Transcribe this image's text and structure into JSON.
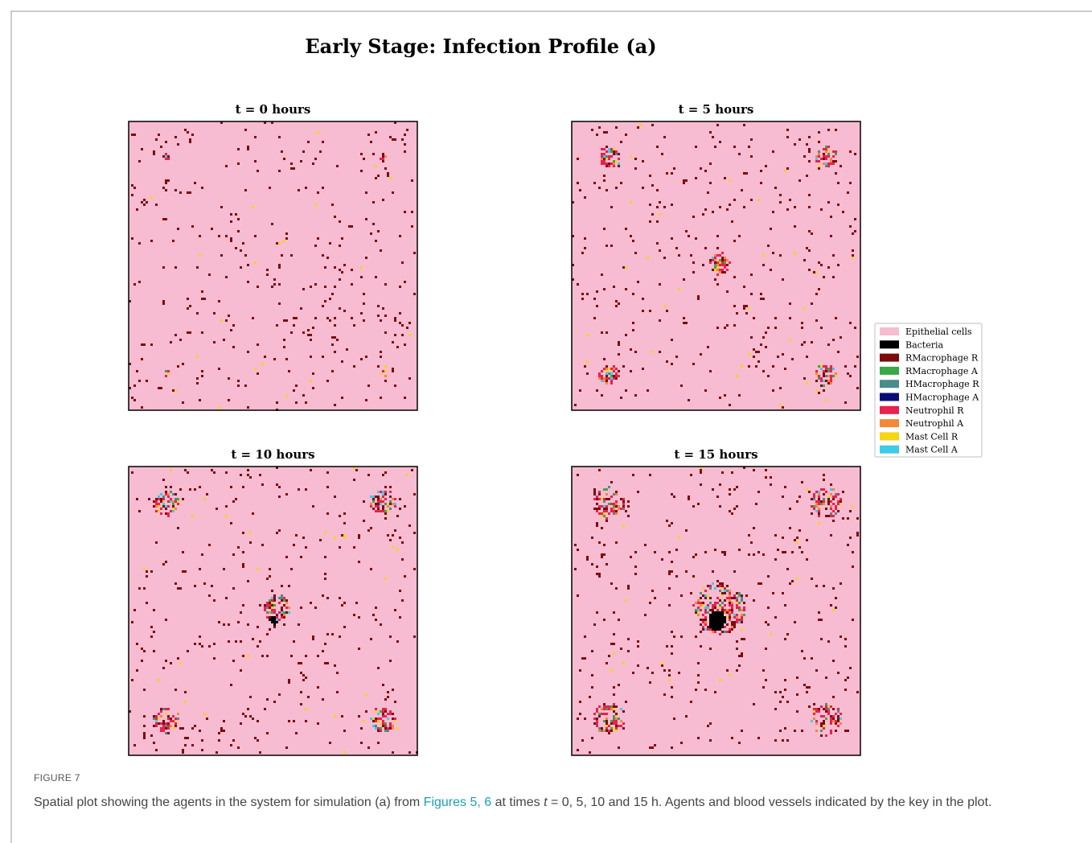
{
  "figure": {
    "title": "Early Stage: Infection Profile (a)",
    "panels": [
      {
        "title": "t = 0 hours"
      },
      {
        "title": "t = 5 hours"
      },
      {
        "title": "t = 10 hours"
      },
      {
        "title": "t = 15 hours"
      }
    ],
    "legend": [
      {
        "name": "Epithelial cells",
        "color": "#f7bcd1"
      },
      {
        "name": "Bacteria",
        "color": "#000000"
      },
      {
        "name": "RMacrophage R",
        "color": "#7d0b0b"
      },
      {
        "name": "RMacrophage A",
        "color": "#3aa845"
      },
      {
        "name": "HMacrophage R",
        "color": "#4b8b8c"
      },
      {
        "name": "HMacrophage A",
        "color": "#0b0b78"
      },
      {
        "name": "Neutrophil R",
        "color": "#e8214f"
      },
      {
        "name": "Neutrophil A",
        "color": "#f5873a"
      },
      {
        "name": "Mast Cell R",
        "color": "#f5d514"
      },
      {
        "name": "Mast Cell A",
        "color": "#3ecbe8"
      }
    ]
  },
  "caption": {
    "label": "FIGURE 7",
    "text_before": "Spatial plot showing the agents in the system for simulation (a) from ",
    "link": "Figures 5, 6",
    "text_middle": " at times ",
    "variable": "t",
    "text_after": " = 0, 5, 10 and 15 h. Agents and blood vessels indicated by the key in the plot."
  }
}
